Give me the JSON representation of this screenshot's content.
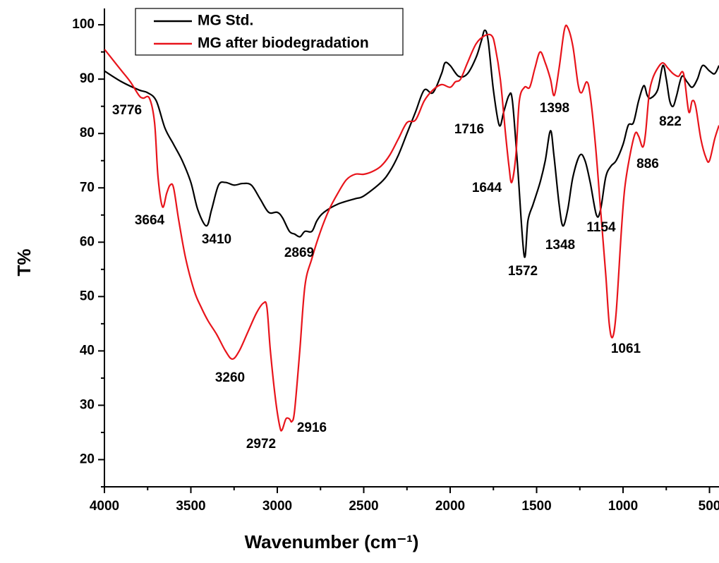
{
  "chart_data": {
    "type": "line",
    "xlabel": "Wavenumber (cm⁻¹)",
    "ylabel": "T%",
    "xlim": [
      4000,
      445
    ],
    "ylim": [
      15,
      103
    ],
    "xticks": [
      4000,
      3500,
      3000,
      2500,
      2000,
      1500,
      1000,
      500
    ],
    "yticks": [
      20,
      30,
      40,
      50,
      60,
      70,
      80,
      90,
      100
    ],
    "legend": "upper left",
    "series": [
      {
        "name": "MG Std.",
        "color": "#000000",
        "x": [
          4000,
          3900,
          3800,
          3750,
          3700,
          3650,
          3600,
          3550,
          3500,
          3460,
          3410,
          3380,
          3340,
          3300,
          3250,
          3200,
          3150,
          3100,
          3050,
          3000,
          2970,
          2930,
          2900,
          2869,
          2840,
          2800,
          2770,
          2730,
          2650,
          2550,
          2500,
          2400,
          2350,
          2300,
          2250,
          2200,
          2150,
          2100,
          2050,
          2030,
          2000,
          1950,
          1900,
          1850,
          1820,
          1800,
          1780,
          1750,
          1716,
          1690,
          1660,
          1640,
          1610,
          1572,
          1550,
          1520,
          1480,
          1450,
          1420,
          1400,
          1370,
          1348,
          1320,
          1290,
          1250,
          1220,
          1190,
          1154,
          1130,
          1100,
          1070,
          1040,
          1000,
          970,
          940,
          910,
          880,
          860,
          840,
          800,
          770,
          750,
          730,
          710,
          690,
          660,
          630,
          600,
          570,
          540,
          500,
          470,
          445
        ],
        "values": [
          91.5,
          89.5,
          88,
          87.5,
          86,
          81,
          78,
          75,
          71,
          66,
          63,
          66,
          70.5,
          71,
          70.5,
          70.8,
          70.5,
          68,
          65.5,
          65.5,
          64.5,
          62,
          61.5,
          61,
          62,
          62,
          64,
          65.5,
          67,
          68,
          68.5,
          71,
          73,
          76,
          80,
          84,
          88,
          87.5,
          91,
          93,
          92.5,
          90.5,
          91,
          94,
          97,
          99,
          97,
          88,
          81.5,
          84,
          87,
          86,
          74,
          57.5,
          64,
          67,
          71,
          75,
          80.5,
          76,
          67,
          63,
          66,
          72,
          76,
          75,
          71,
          65,
          66,
          72,
          74,
          75,
          78,
          81.5,
          82,
          86,
          88.8,
          87,
          86.5,
          88,
          92.5,
          90,
          86,
          85,
          87,
          90.5,
          89.5,
          88.5,
          90,
          92.5,
          91.5,
          91,
          92.5
        ]
      },
      {
        "name": "MG after biodegradation",
        "color": "#e8141b",
        "x": [
          4000,
          3950,
          3900,
          3850,
          3800,
          3776,
          3740,
          3710,
          3690,
          3664,
          3640,
          3620,
          3600,
          3570,
          3530,
          3480,
          3440,
          3400,
          3350,
          3300,
          3260,
          3220,
          3170,
          3120,
          3080,
          3060,
          3040,
          3010,
          2985,
          2972,
          2950,
          2930,
          2916,
          2900,
          2870,
          2840,
          2800,
          2750,
          2700,
          2650,
          2600,
          2550,
          2500,
          2450,
          2400,
          2350,
          2300,
          2250,
          2200,
          2150,
          2100,
          2050,
          2000,
          1970,
          1940,
          1900,
          1850,
          1800,
          1760,
          1740,
          1710,
          1680,
          1660,
          1644,
          1620,
          1600,
          1570,
          1540,
          1510,
          1480,
          1450,
          1420,
          1398,
          1370,
          1340,
          1320,
          1290,
          1260,
          1240,
          1210,
          1190,
          1160,
          1130,
          1100,
          1080,
          1061,
          1040,
          1010,
          990,
          960,
          930,
          910,
          886,
          870,
          850,
          830,
          800,
          770,
          740,
          710,
          680,
          650,
          620,
          600,
          580,
          550,
          520,
          500,
          470,
          445
        ],
        "values": [
          95.5,
          93.5,
          91.5,
          89.5,
          87,
          86.5,
          86.5,
          82,
          72,
          66.5,
          69,
          70.5,
          70,
          64,
          57,
          51,
          48,
          45.5,
          43,
          40,
          38.5,
          40,
          43.5,
          47,
          48.8,
          48,
          40,
          31,
          26,
          25.5,
          27.5,
          27.5,
          27,
          29,
          40,
          52,
          57,
          62,
          66,
          69,
          71.5,
          72.5,
          72.5,
          73,
          74,
          76,
          79,
          82,
          82.5,
          86,
          88,
          89,
          88.5,
          89.5,
          90,
          93,
          96.5,
          98,
          98,
          96,
          90,
          80,
          74,
          71,
          76,
          86,
          88.5,
          88.5,
          92,
          95,
          93,
          90,
          87,
          92,
          99,
          99.5,
          96,
          89,
          87.5,
          89.5,
          87,
          78,
          66,
          54,
          45,
          42.5,
          47,
          62,
          70,
          76,
          80,
          79.5,
          77.5,
          80,
          87,
          90,
          92,
          93,
          92,
          91,
          90.5,
          91,
          84,
          86,
          85,
          79,
          75.5,
          75,
          79,
          81.5
        ]
      }
    ],
    "annotations": [
      "3776",
      "3664",
      "3410",
      "2869",
      "3260",
      "2972",
      "2916",
      "1716",
      "1644",
      "1572",
      "1348",
      "1154",
      "1398",
      "822",
      "886",
      "1061"
    ]
  }
}
